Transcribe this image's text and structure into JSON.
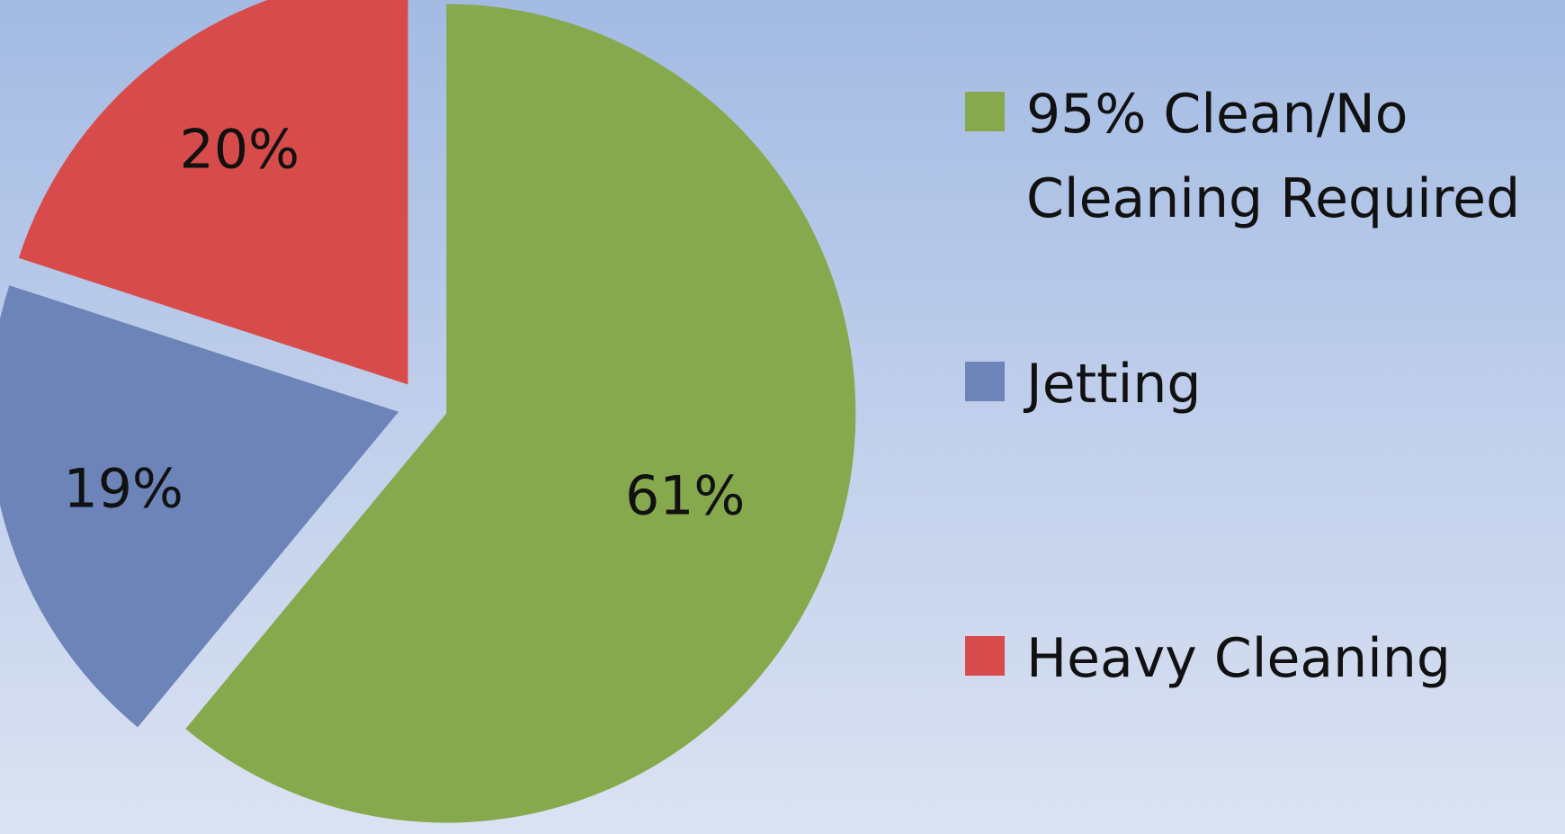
{
  "chart_data": {
    "type": "pie",
    "slices": [
      {
        "label": "95% Clean/No\nCleaning Required",
        "value": 61,
        "display": "61%",
        "color": "#86a94d"
      },
      {
        "label": "Jetting",
        "value": 19,
        "display": "19%",
        "color": "#6d84b8"
      },
      {
        "label": "Heavy Cleaning",
        "value": 20,
        "display": "20%",
        "color": "#d84b4b"
      }
    ],
    "legend_position": "right",
    "exploded": true
  }
}
